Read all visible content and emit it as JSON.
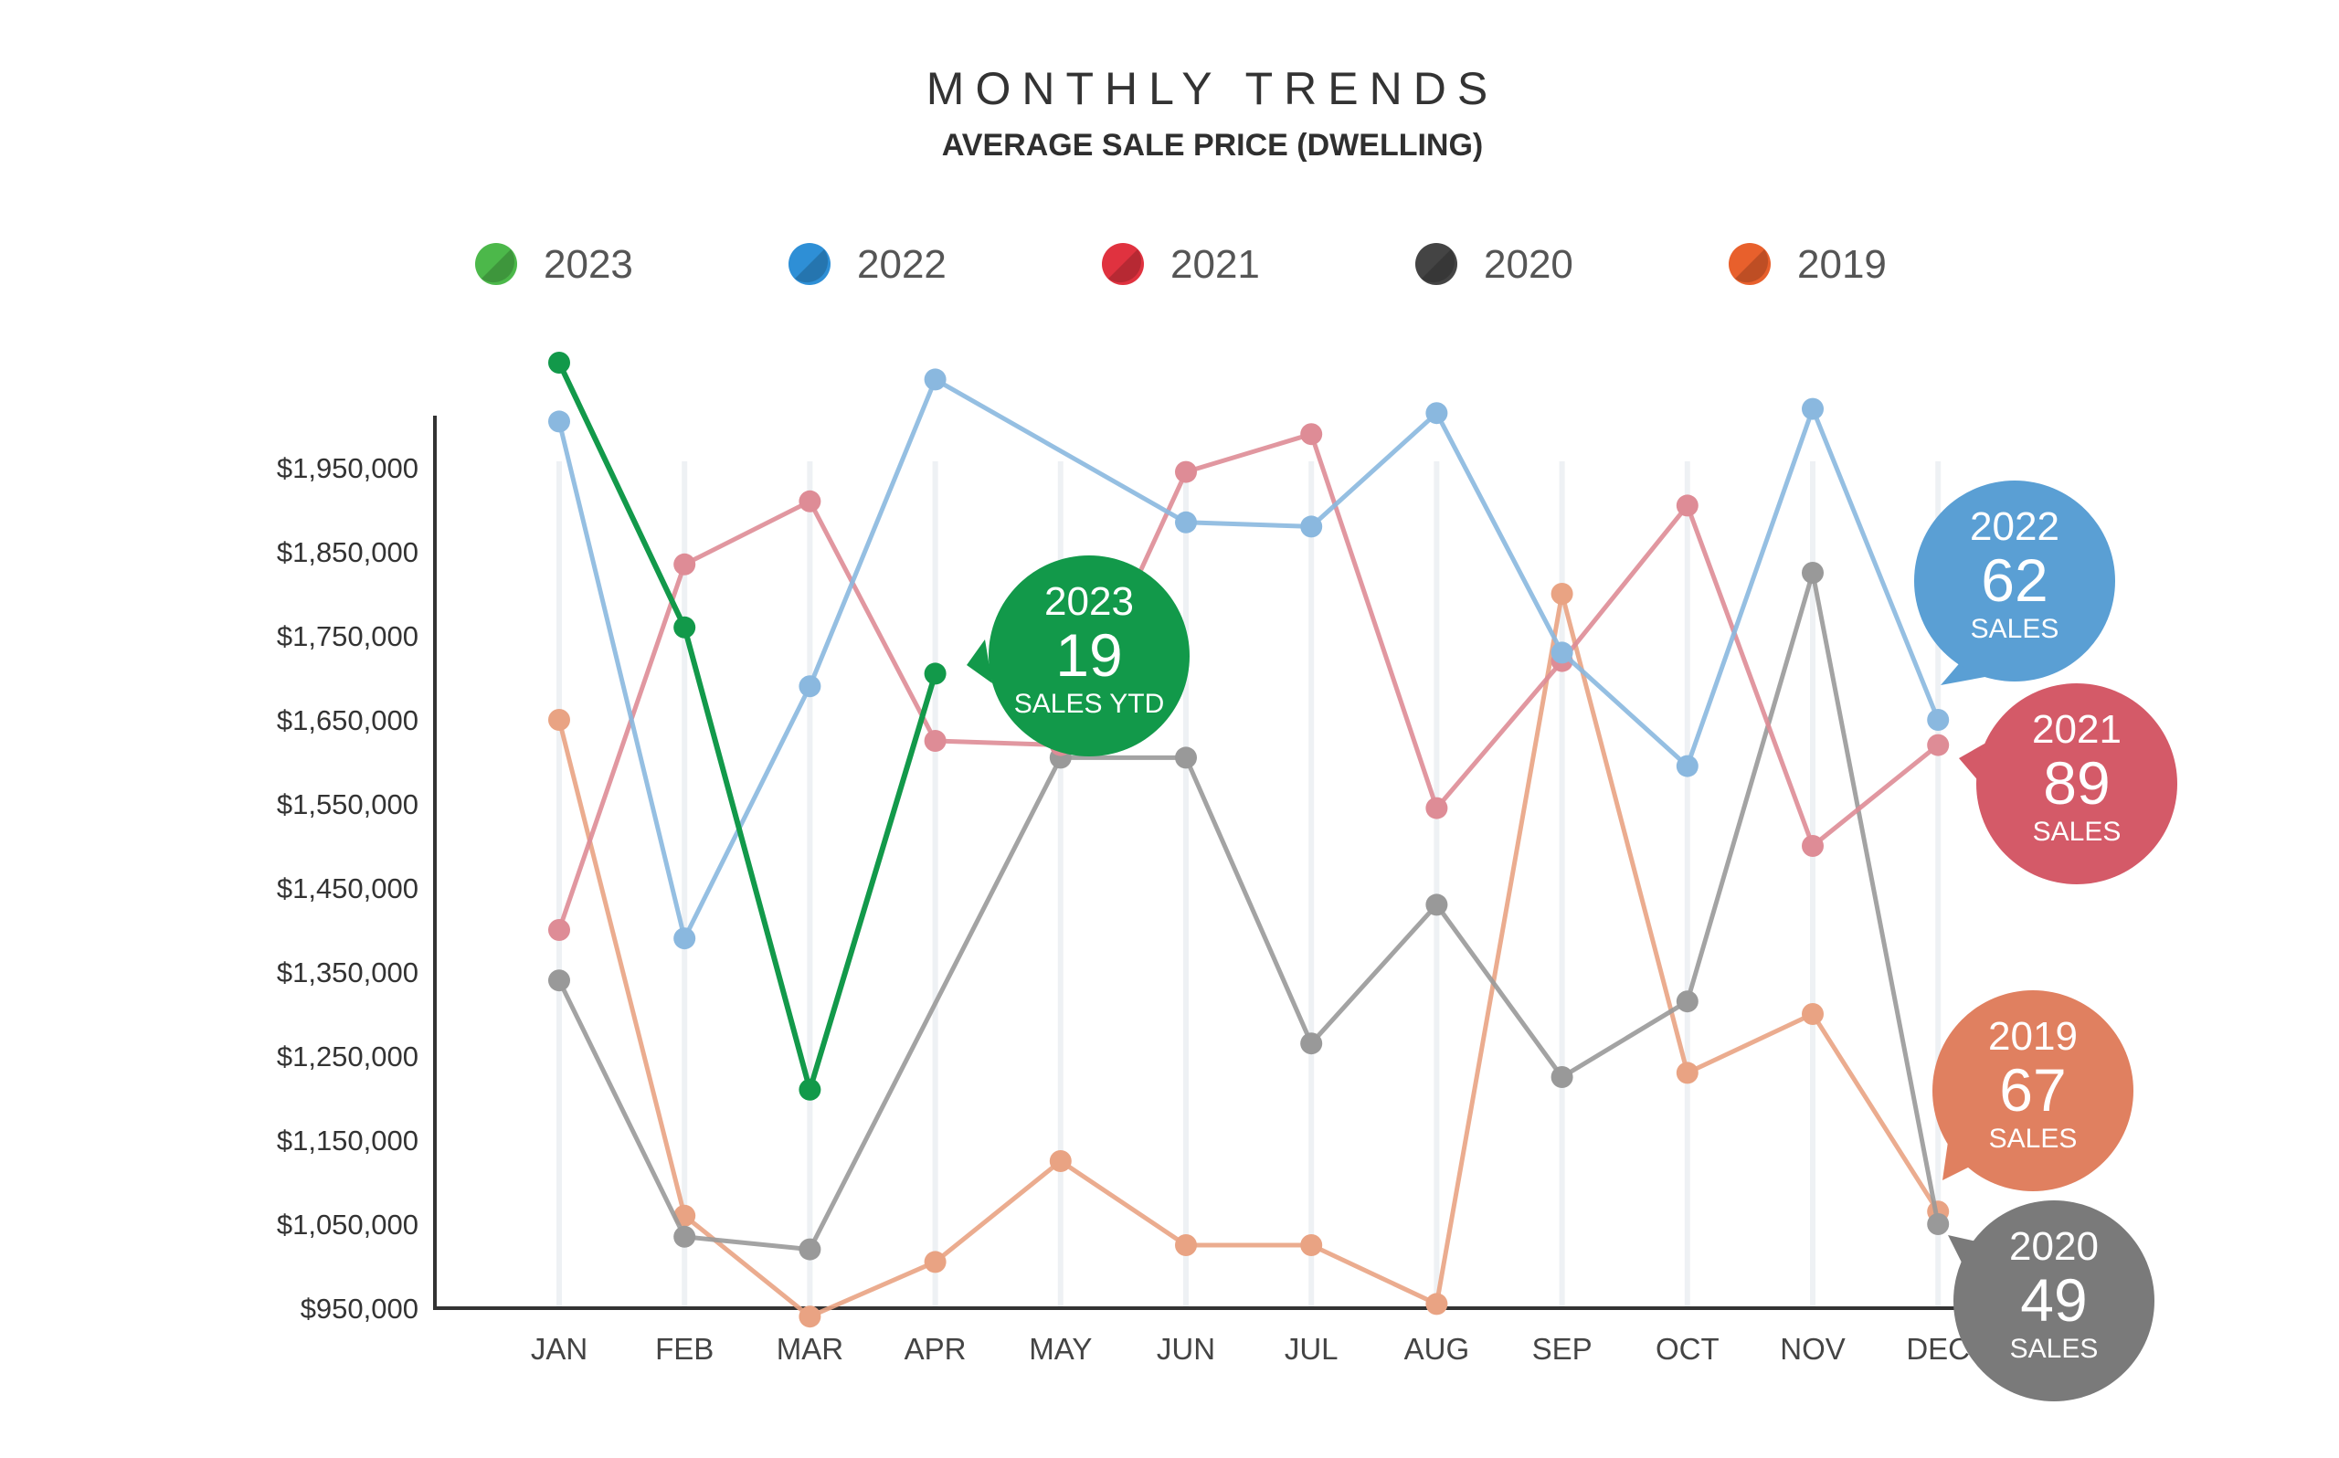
{
  "header": {
    "title": "MONTHLY TRENDS",
    "subtitle": "AVERAGE SALE PRICE (DWELLING)"
  },
  "legend": [
    {
      "label": "2023",
      "color": "#4cb84a"
    },
    {
      "label": "2022",
      "color": "#2e8fd6"
    },
    {
      "label": "2021",
      "color": "#e0323f"
    },
    {
      "label": "2020",
      "color": "#444444"
    },
    {
      "label": "2019",
      "color": "#e8602c"
    }
  ],
  "callouts": [
    {
      "year": "2023",
      "count": "19",
      "caption": "SALES YTD",
      "color": "#12994a"
    },
    {
      "year": "2022",
      "count": "62",
      "caption": "SALES",
      "color": "#5a9fd4"
    },
    {
      "year": "2021",
      "count": "89",
      "caption": "SALES",
      "color": "#d45a68"
    },
    {
      "year": "2019",
      "count": "67",
      "caption": "SALES",
      "color": "#e08060"
    },
    {
      "year": "2020",
      "count": "49",
      "caption": "SALES",
      "color": "#7a7a7a"
    }
  ],
  "chart_data": {
    "type": "line",
    "title": "MONTHLY TRENDS",
    "subtitle": "AVERAGE SALE PRICE (DWELLING)",
    "categories": [
      "JAN",
      "FEB",
      "MAR",
      "APR",
      "MAY",
      "JUN",
      "JUL",
      "AUG",
      "SEP",
      "OCT",
      "NOV",
      "DEC"
    ],
    "ylim": [
      950000,
      2010000
    ],
    "yticks": [
      950000,
      1050000,
      1150000,
      1250000,
      1350000,
      1450000,
      1550000,
      1650000,
      1750000,
      1850000,
      1950000
    ],
    "ytick_labels": [
      "$950,000",
      "$1,050,000",
      "$1,150,000",
      "$1,250,000",
      "$1,350,000",
      "$1,450,000",
      "$1,550,000",
      "$1,650,000",
      "$1,750,000",
      "$1,850,000",
      "$1,950,000"
    ],
    "grid": "vertical",
    "legend_position": "top",
    "series": [
      {
        "name": "2019",
        "color": "#e9a383",
        "values": [
          1650000,
          1060000,
          940000,
          1005000,
          1125000,
          1025000,
          1025000,
          955000,
          1800000,
          1230000,
          1300000,
          1065000
        ]
      },
      {
        "name": "2020",
        "color": "#999999",
        "values": [
          1340000,
          1035000,
          1020000,
          null,
          1605000,
          1605000,
          1265000,
          1430000,
          1225000,
          1315000,
          1825000,
          1050000
        ]
      },
      {
        "name": "2021",
        "color": "#de8c96",
        "values": [
          1400000,
          1835000,
          1910000,
          1625000,
          1620000,
          1945000,
          1990000,
          1545000,
          1720000,
          1905000,
          1500000,
          1620000
        ]
      },
      {
        "name": "2022",
        "color": "#8ab8df",
        "values": [
          2005000,
          1390000,
          1690000,
          2055000,
          null,
          1885000,
          1880000,
          2015000,
          1730000,
          1595000,
          2020000,
          1650000
        ]
      },
      {
        "name": "2023",
        "color": "#12994a",
        "values": [
          2075000,
          1760000,
          1210000,
          1705000,
          null,
          null,
          null,
          null,
          null,
          null,
          null,
          null
        ]
      }
    ]
  }
}
